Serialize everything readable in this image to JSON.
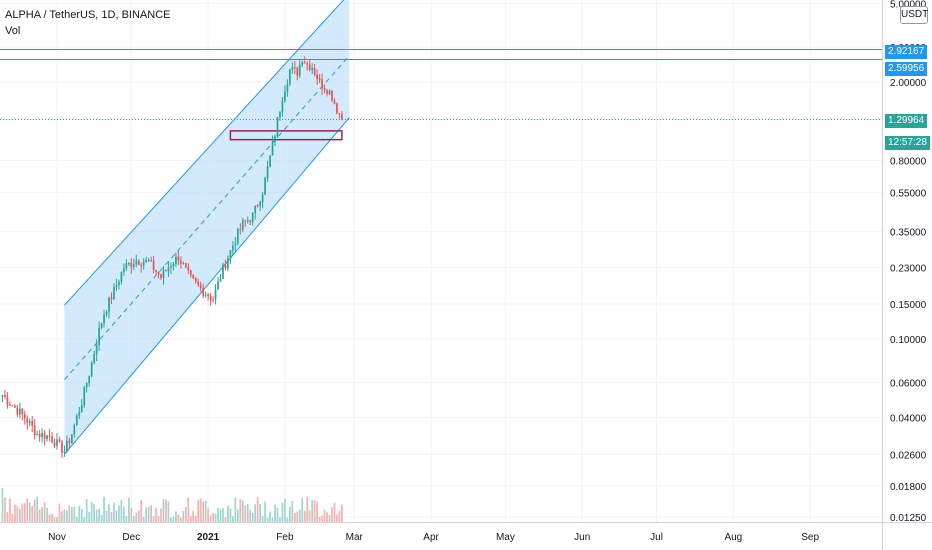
{
  "header": {
    "symbol_line": "ALPHA / TetherUS, 1D, BINANCE",
    "indicator": "Vol"
  },
  "price_axis": {
    "unit_button": "USDT"
  },
  "colors": {
    "up": "#26a69a",
    "down": "#ef5350",
    "volume_up": "#9fd6d1",
    "volume_down": "#f7b2b0",
    "channel_line": "#2196f3",
    "channel_fill": "#bbdefb",
    "level_line": "#2196f3",
    "last_price": "#26a69a",
    "support_box": "#9c1f5c"
  },
  "badges": {
    "level_1": "2.92167",
    "level_2": "2.59956",
    "last_price": "1.29964",
    "countdown": "12:57:28"
  },
  "chart_data": {
    "type": "candlestick",
    "title": "ALPHA / TetherUS, 1D, BINANCE",
    "y_scale": "log",
    "y_ticks": [
      "5.00000",
      "3.00000",
      "2.00000",
      "1.30000",
      "0.80000",
      "0.55000",
      "0.35000",
      "0.23000",
      "0.15000",
      "0.10000",
      "0.06000",
      "0.04000",
      "0.02600",
      "0.01800",
      "0.01250"
    ],
    "x_ticks": [
      "Nov",
      "Dec",
      "2021",
      "Feb",
      "Mar",
      "Apr",
      "May",
      "Jun",
      "Jul",
      "Aug",
      "Sep"
    ],
    "x_range": [
      "2020-10-09",
      "2021-09-30"
    ],
    "ylim": [
      0.0118,
      5.2
    ],
    "grid": true,
    "price_anchors": [
      [
        "2020-10-10",
        0.052
      ],
      [
        "2020-10-14",
        0.046
      ],
      [
        "2020-10-19",
        0.04
      ],
      [
        "2020-10-24",
        0.033
      ],
      [
        "2020-10-29",
        0.032
      ],
      [
        "2020-11-04",
        0.027
      ],
      [
        "2020-11-07",
        0.033
      ],
      [
        "2020-11-11",
        0.048
      ],
      [
        "2020-11-15",
        0.075
      ],
      [
        "2020-11-18",
        0.11
      ],
      [
        "2020-11-20",
        0.135
      ],
      [
        "2020-11-24",
        0.175
      ],
      [
        "2020-11-28",
        0.23
      ],
      [
        "2020-12-03",
        0.25
      ],
      [
        "2020-12-08",
        0.245
      ],
      [
        "2020-12-13",
        0.205
      ],
      [
        "2020-12-17",
        0.24
      ],
      [
        "2020-12-20",
        0.26
      ],
      [
        "2020-12-25",
        0.2
      ],
      [
        "2020-12-30",
        0.175
      ],
      [
        "2021-01-03",
        0.16
      ],
      [
        "2021-01-07",
        0.225
      ],
      [
        "2021-01-12",
        0.32
      ],
      [
        "2021-01-15",
        0.38
      ],
      [
        "2021-01-19",
        0.42
      ],
      [
        "2021-01-23",
        0.56
      ],
      [
        "2021-01-27",
        0.95
      ],
      [
        "2021-01-31",
        1.7
      ],
      [
        "2021-02-03",
        2.3
      ],
      [
        "2021-02-06",
        2.25
      ],
      [
        "2021-02-08",
        2.65
      ],
      [
        "2021-02-10",
        2.45
      ],
      [
        "2021-02-12",
        2.4
      ],
      [
        "2021-02-15",
        2.0
      ],
      [
        "2021-02-18",
        1.85
      ],
      [
        "2021-02-20",
        1.7
      ],
      [
        "2021-02-22",
        1.45
      ],
      [
        "2021-02-24",
        1.3
      ]
    ],
    "support_zone": {
      "start": "2021-01-10",
      "end": "2021-02-24",
      "low": 1.02,
      "high": 1.13
    },
    "horizontal_levels": [
      2.92167,
      2.59956
    ],
    "last_price": 1.29964,
    "parallel_channel": {
      "lower_line": [
        [
          "2020-11-04",
          0.026
        ],
        [
          "2021-02-27",
          1.32
        ]
      ],
      "upper_line": [
        [
          "2020-11-04",
          0.148
        ],
        [
          "2021-02-27",
          5.6
        ]
      ]
    }
  }
}
